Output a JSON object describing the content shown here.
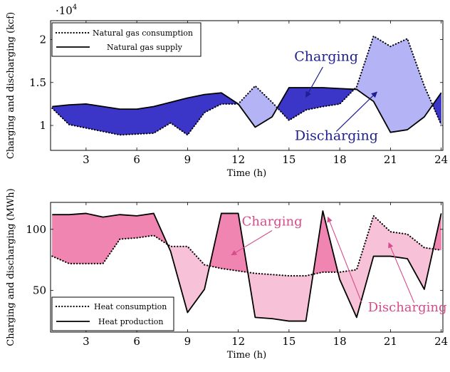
{
  "chart_data": [
    {
      "type": "line",
      "multiplier_label": "·10",
      "multiplier_exp": "4",
      "x": [
        1,
        2,
        3,
        4,
        5,
        6,
        7,
        8,
        9,
        10,
        11,
        12,
        13,
        14,
        15,
        16,
        17,
        18,
        19,
        20,
        21,
        22,
        23,
        24
      ],
      "xticks": [
        "3",
        "6",
        "9",
        "12",
        "15",
        "18",
        "21",
        "24"
      ],
      "xtick_values": [
        3,
        6,
        9,
        12,
        15,
        18,
        21,
        24
      ],
      "yticks": [
        "1",
        "1.5",
        "2"
      ],
      "ytick_values": [
        1,
        1.5,
        2
      ],
      "xlabel": "Time (h)",
      "ylabel": "Charging and discharging (kcf)",
      "xlim": [
        0.9,
        24.1
      ],
      "ylim": [
        0.71,
        2.22
      ],
      "series": [
        {
          "name": "Natural gas consumption",
          "style": "dotted",
          "values": [
            1.2,
            1.01,
            0.97,
            0.93,
            0.89,
            0.9,
            0.91,
            1.03,
            0.89,
            1.15,
            1.25,
            1.25,
            1.46,
            1.27,
            1.06,
            1.18,
            1.22,
            1.25,
            1.45,
            2.04,
            1.92,
            2.01,
            1.46,
            1.01
          ]
        },
        {
          "name": "Natural gas supply",
          "style": "solid",
          "values": [
            1.22,
            1.24,
            1.25,
            1.22,
            1.19,
            1.19,
            1.22,
            1.27,
            1.32,
            1.36,
            1.38,
            1.25,
            0.98,
            1.1,
            1.44,
            1.44,
            1.44,
            1.43,
            1.42,
            1.28,
            0.92,
            0.95,
            1.1,
            1.38
          ]
        }
      ],
      "annotations": [
        {
          "text": "Charging",
          "x": 17.2,
          "y": 1.75
        },
        {
          "text": "Discharging",
          "x": 17.8,
          "y": 0.83
        }
      ],
      "legend": "top-left",
      "colors": {
        "charging": "#3b36c8",
        "discharging": "#b3b3f5",
        "annotation": "#1f1f8f"
      }
    },
    {
      "type": "line",
      "x": [
        1,
        2,
        3,
        4,
        5,
        6,
        7,
        8,
        9,
        10,
        11,
        12,
        13,
        14,
        15,
        16,
        17,
        18,
        19,
        20,
        21,
        22,
        23,
        24
      ],
      "xticks": [
        "3",
        "6",
        "9",
        "12",
        "15",
        "18",
        "21",
        "24"
      ],
      "xtick_values": [
        3,
        6,
        9,
        12,
        15,
        18,
        21,
        24
      ],
      "yticks": [
        "50",
        "100"
      ],
      "ytick_values": [
        50,
        100
      ],
      "xlabel": "Time (h)",
      "ylabel": "Charging and discharging (MWh)",
      "xlim": [
        0.9,
        24.1
      ],
      "ylim": [
        16,
        122
      ],
      "series": [
        {
          "name": "Heat consumption",
          "style": "dotted",
          "values": [
            78,
            72,
            72,
            72,
            92,
            93,
            95,
            86,
            86,
            71,
            68,
            66,
            64,
            63,
            62,
            62,
            65,
            65,
            67,
            111,
            98,
            96,
            85,
            83
          ]
        },
        {
          "name": "Heat production",
          "style": "solid",
          "values": [
            112,
            112,
            113,
            110,
            112,
            111,
            113,
            82,
            32,
            51,
            113,
            113,
            28,
            27,
            25,
            25,
            115,
            59,
            28,
            78,
            78,
            76,
            51,
            113
          ]
        }
      ],
      "annotations": [
        {
          "text": "Charging",
          "x": 14.0,
          "y": 103
        },
        {
          "text": "Discharging",
          "x": 22.0,
          "y": 33
        }
      ],
      "legend": "bottom-left",
      "colors": {
        "charging": "#ef85b0",
        "discharging": "#f7c2d8",
        "annotation": "#d64b8b"
      }
    }
  ]
}
